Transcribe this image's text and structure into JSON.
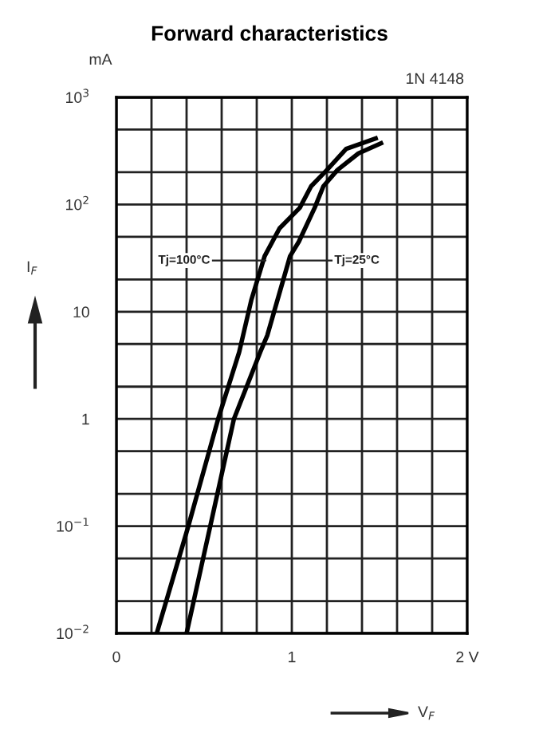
{
  "chart_data": {
    "type": "line",
    "title": "Forward characteristics",
    "xlabel": "V$_{F}$",
    "ylabel": "I$_{F}$",
    "annotations": [
      "mA",
      "1N 4148",
      {
        "text": "Tj=100°C",
        "x": 0.85,
        "y": 30
      },
      {
        "text": "Tj=25°C",
        "x": 0.99,
        "y": 30
      }
    ],
    "series": [
      {
        "color": "#000000",
        "x": [
          0.23,
          0.41,
          0.58,
          0.7,
          0.77,
          0.845,
          0.93,
          1.045,
          1.11,
          1.2,
          1.31,
          1.49
        ],
        "values": [
          0.01,
          0.1,
          1,
          4.2,
          13,
          33,
          60,
          93,
          148,
          210,
          330,
          420
        ]
      },
      {
        "color": "#000000",
        "x": [
          0.4,
          0.535,
          0.67,
          0.82,
          0.86,
          0.99,
          1.04,
          1.13,
          1.18,
          1.26,
          1.38,
          1.52
        ],
        "values": [
          0.01,
          0.1,
          1,
          4.2,
          6,
          33,
          45,
          93,
          148,
          210,
          300,
          380
        ]
      }
    ],
    "log": "y",
    "xlim": [
      0,
      2
    ],
    "ylim": [
      0.01,
      1000
    ],
    "xticks": [
      {
        "value": 0,
        "label": "0"
      },
      {
        "value": 0.2,
        "label": null
      },
      {
        "value": 0.4,
        "label": null
      },
      {
        "value": 0.6,
        "label": null
      },
      {
        "value": 0.8,
        "label": null
      },
      {
        "value": 1,
        "label": "1"
      },
      {
        "value": 1.2,
        "label": null
      },
      {
        "value": 1.4,
        "label": null
      },
      {
        "value": 1.6,
        "label": null
      },
      {
        "value": 1.8,
        "label": null
      },
      {
        "value": 2,
        "label": "2 V"
      }
    ],
    "yticks": [
      {
        "value": 0.01,
        "label": "10$^{−2}$"
      },
      {
        "value": 0.02,
        "label": null
      },
      {
        "value": 0.05,
        "label": null
      },
      {
        "value": 0.1,
        "label": "10$^{−1}$"
      },
      {
        "value": 0.2,
        "label": null
      },
      {
        "value": 0.5,
        "label": null
      },
      {
        "value": 1,
        "label": "1"
      },
      {
        "value": 2,
        "label": null
      },
      {
        "value": 5,
        "label": null
      },
      {
        "value": 10,
        "label": "10"
      },
      {
        "value": 20,
        "label": null
      },
      {
        "value": 50,
        "label": null
      },
      {
        "value": 100,
        "label": "10$^{2}$"
      },
      {
        "value": 200,
        "label": null
      },
      {
        "value": 500,
        "label": null
      },
      {
        "value": 1000,
        "label": "10$^{3}$"
      }
    ],
    "grid": true,
    "marker": "none",
    "line_style": "solid"
  }
}
